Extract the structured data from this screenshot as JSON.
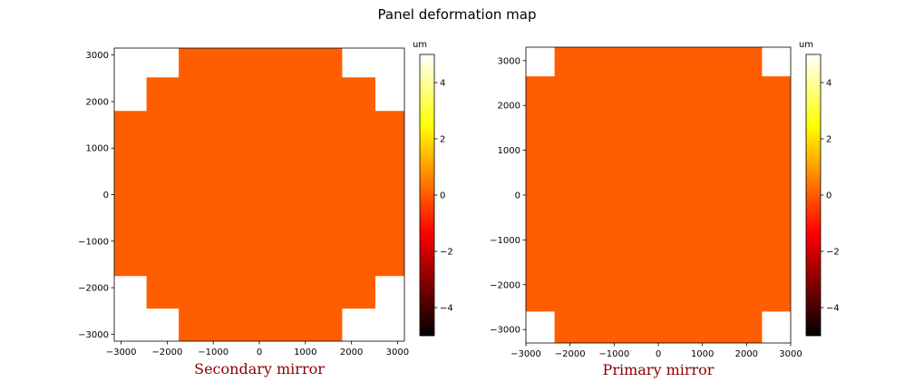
{
  "figure": {
    "suptitle": "Panel deformation map"
  },
  "chart_data": [
    {
      "type": "heatmap",
      "title": "Secondary mirror",
      "title_color": "#8b0000",
      "xlim": [
        -3150,
        3150
      ],
      "ylim": [
        -3150,
        3150
      ],
      "xticks": [
        -3000,
        -2000,
        -1000,
        0,
        1000,
        2000,
        3000
      ],
      "yticks": [
        -3000,
        -2000,
        -1000,
        0,
        1000,
        2000,
        3000
      ],
      "fill_value": 0.8,
      "fill_color": "#ff5e00",
      "panels_outline": [
        [
          -1750,
          3150
        ],
        [
          1800,
          3150
        ],
        [
          1800,
          2520
        ],
        [
          2520,
          2520
        ],
        [
          2520,
          1800
        ],
        [
          3150,
          1800
        ],
        [
          3150,
          -1750
        ],
        [
          2520,
          -1750
        ],
        [
          2520,
          -2450
        ],
        [
          1800,
          -2450
        ],
        [
          1800,
          -3150
        ],
        [
          -1750,
          -3150
        ],
        [
          -1750,
          -2450
        ],
        [
          -2450,
          -2450
        ],
        [
          -2450,
          -1750
        ],
        [
          -3150,
          -1750
        ],
        [
          -3150,
          1800
        ],
        [
          -2450,
          1800
        ],
        [
          -2450,
          2520
        ],
        [
          -1750,
          2520
        ]
      ],
      "colorbar": {
        "label": "um",
        "range": [
          -5,
          5
        ],
        "ticks": [
          -4,
          -2,
          0,
          2,
          4
        ],
        "tick_labels": [
          "−4",
          "−2",
          "0",
          "2",
          "4"
        ],
        "colormap": "hot"
      }
    },
    {
      "type": "heatmap",
      "title": "Primary mirror",
      "title_color": "#8b0000",
      "xlim": [
        -3000,
        3000
      ],
      "ylim": [
        -3300,
        3300
      ],
      "xticks": [
        -3000,
        -2000,
        -1000,
        0,
        1000,
        2000,
        3000
      ],
      "yticks": [
        -3000,
        -2000,
        -1000,
        0,
        1000,
        2000,
        3000
      ],
      "fill_value": 0.8,
      "fill_color": "#ff5e00",
      "panels_outline": [
        [
          -2350,
          3300
        ],
        [
          2350,
          3300
        ],
        [
          2350,
          2650
        ],
        [
          3000,
          2650
        ],
        [
          3000,
          -2600
        ],
        [
          2350,
          -2600
        ],
        [
          2350,
          -3300
        ],
        [
          -2350,
          -3300
        ],
        [
          -2350,
          -2600
        ],
        [
          -3000,
          -2600
        ],
        [
          -3000,
          2650
        ],
        [
          -2350,
          2650
        ]
      ],
      "colorbar": {
        "label": "um",
        "range": [
          -5,
          5
        ],
        "ticks": [
          -4,
          -2,
          0,
          2,
          4
        ],
        "tick_labels": [
          "−4",
          "−2",
          "0",
          "2",
          "4"
        ],
        "colormap": "hot"
      }
    }
  ]
}
